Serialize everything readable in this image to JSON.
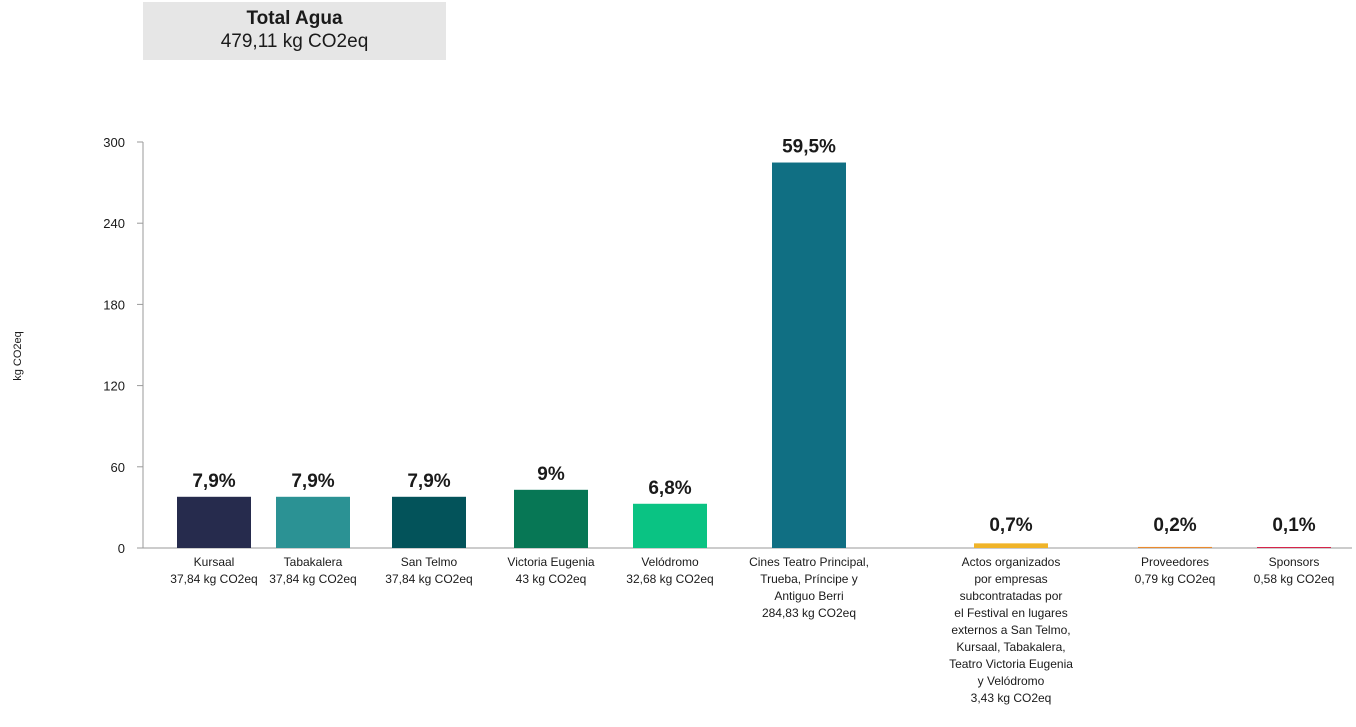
{
  "header": {
    "title": "Total Agua",
    "value": "479,11 kg CO2eq"
  },
  "chart_data": {
    "type": "bar",
    "ylabel": "kg CO2eq",
    "xlabel": "",
    "ylim": [
      0,
      300
    ],
    "yticks": [
      0,
      60,
      120,
      180,
      240,
      300
    ],
    "grid": false,
    "categories": [
      {
        "lines": [
          "Kursaal",
          "37,84 kg CO2eq"
        ],
        "value": 37.84,
        "pct": "7,9%",
        "color": "#262b4d"
      },
      {
        "lines": [
          "Tabakalera",
          "37,84 kg CO2eq"
        ],
        "value": 37.84,
        "pct": "7,9%",
        "color": "#2b9294"
      },
      {
        "lines": [
          "San Telmo",
          "37,84 kg CO2eq"
        ],
        "value": 37.84,
        "pct": "7,9%",
        "color": "#03535a"
      },
      {
        "lines": [
          "Victoria Eugenia",
          "43 kg CO2eq"
        ],
        "value": 43,
        "pct": "9%",
        "color": "#077755"
      },
      {
        "lines": [
          "Velódromo",
          "32,68 kg CO2eq"
        ],
        "value": 32.68,
        "pct": "6,8%",
        "color": "#0ac383"
      },
      {
        "lines": [
          "Cines Teatro Principal,",
          "Trueba, Príncipe y",
          "Antiguo Berri",
          "284,83 kg CO2eq"
        ],
        "value": 284.83,
        "pct": "59,5%",
        "color": "#106f83"
      },
      {
        "lines": [
          "Actos organizados",
          "por empresas",
          "subcontratadas por",
          "el Festival en lugares",
          "externos a San Telmo,",
          "Kursaal, Tabakalera,",
          "Teatro Victoria Eugenia",
          "y Velódromo",
          "3,43 kg CO2eq"
        ],
        "value": 3.43,
        "pct": "0,7%",
        "color": "#f0b429"
      },
      {
        "lines": [
          "Proveedores",
          "0,79 kg CO2eq"
        ],
        "value": 0.79,
        "pct": "0,2%",
        "color": "#e98a2e"
      },
      {
        "lines": [
          "Sponsors",
          "0,58 kg CO2eq"
        ],
        "value": 0.58,
        "pct": "0,1%",
        "color": "#d6254a"
      }
    ]
  }
}
